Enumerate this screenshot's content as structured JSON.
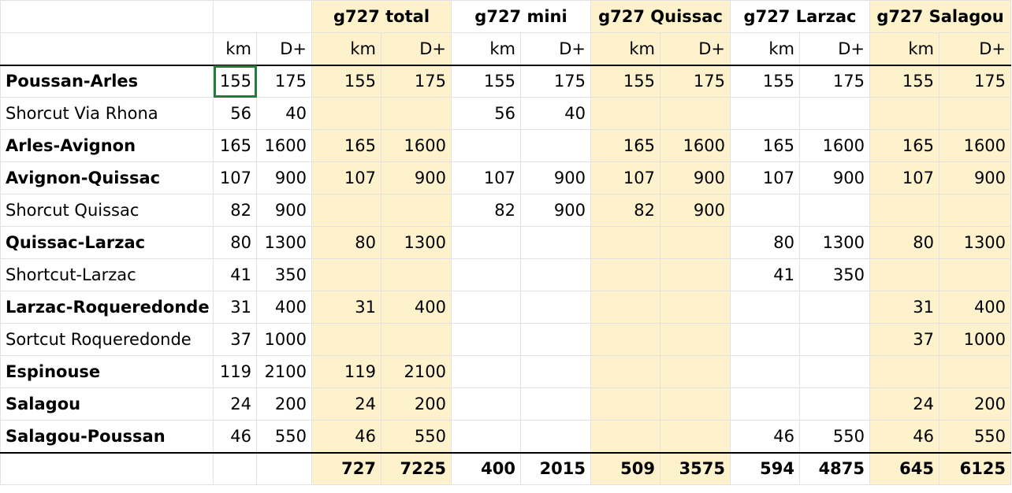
{
  "groups": [
    {
      "title": "",
      "highlight": false
    },
    {
      "title": "g727 total",
      "highlight": true
    },
    {
      "title": "g727 mini",
      "highlight": false
    },
    {
      "title": "g727 Quissac",
      "highlight": true
    },
    {
      "title": "g727 Larzac",
      "highlight": false
    },
    {
      "title": "g727 Salagou",
      "highlight": true
    }
  ],
  "subheaders": [
    "km",
    "D+"
  ],
  "rows": [
    {
      "name": "Poussan-Arles",
      "bold": true,
      "vals": [
        "155",
        "175",
        "155",
        "175",
        "155",
        "175",
        "155",
        "175",
        "155",
        "175",
        "155",
        "175"
      ]
    },
    {
      "name": "Shorcut Via Rhona",
      "bold": false,
      "vals": [
        "56",
        "40",
        "",
        "",
        "56",
        "40",
        "",
        "",
        "",
        "",
        "",
        ""
      ]
    },
    {
      "name": "Arles-Avignon",
      "bold": true,
      "vals": [
        "165",
        "1600",
        "165",
        "1600",
        "",
        "",
        "165",
        "1600",
        "165",
        "1600",
        "165",
        "1600"
      ]
    },
    {
      "name": "Avignon-Quissac",
      "bold": true,
      "vals": [
        "107",
        "900",
        "107",
        "900",
        "107",
        "900",
        "107",
        "900",
        "107",
        "900",
        "107",
        "900"
      ]
    },
    {
      "name": "Shorcut Quissac",
      "bold": false,
      "vals": [
        "82",
        "900",
        "",
        "",
        "82",
        "900",
        "82",
        "900",
        "",
        "",
        "",
        ""
      ]
    },
    {
      "name": "Quissac-Larzac",
      "bold": true,
      "vals": [
        "80",
        "1300",
        "80",
        "1300",
        "",
        "",
        "",
        "",
        "80",
        "1300",
        "80",
        "1300"
      ]
    },
    {
      "name": "Shortcut-Larzac",
      "bold": false,
      "vals": [
        "41",
        "350",
        "",
        "",
        "",
        "",
        "",
        "",
        "41",
        "350",
        "",
        ""
      ]
    },
    {
      "name": "Larzac-Roqueredonde",
      "bold": true,
      "vals": [
        "31",
        "400",
        "31",
        "400",
        "",
        "",
        "",
        "",
        "",
        "",
        "31",
        "400"
      ]
    },
    {
      "name": "Sortcut Roqueredonde",
      "bold": false,
      "vals": [
        "37",
        "1000",
        "",
        "",
        "",
        "",
        "",
        "",
        "",
        "",
        "37",
        "1000"
      ]
    },
    {
      "name": "Espinouse",
      "bold": true,
      "vals": [
        "119",
        "2100",
        "119",
        "2100",
        "",
        "",
        "",
        "",
        "",
        "",
        "",
        ""
      ]
    },
    {
      "name": "Salagou",
      "bold": true,
      "vals": [
        "24",
        "200",
        "24",
        "200",
        "",
        "",
        "",
        "",
        "",
        "",
        "24",
        "200"
      ]
    },
    {
      "name": "Salagou-Poussan",
      "bold": true,
      "vals": [
        "46",
        "550",
        "46",
        "550",
        "",
        "",
        "",
        "",
        "46",
        "550",
        "46",
        "550"
      ]
    }
  ],
  "totals": [
    "",
    "",
    "727",
    "7225",
    "400",
    "2015",
    "509",
    "3575",
    "594",
    "4875",
    "645",
    "6125"
  ]
}
